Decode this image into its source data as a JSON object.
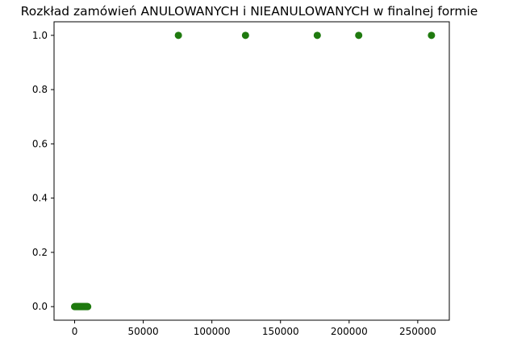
{
  "chart_data": {
    "type": "scatter",
    "title": "Rozkład zamówień ANULOWANYCH i NIEANULOWANYCH w finalnej formie",
    "xlabel": "",
    "ylabel": "",
    "xlim": [
      -15000,
      273000
    ],
    "ylim": [
      -0.05,
      1.05
    ],
    "x_ticks": [
      0,
      50000,
      100000,
      150000,
      200000,
      250000
    ],
    "x_tick_labels": [
      "0",
      "50000",
      "100000",
      "150000",
      "200000",
      "250000"
    ],
    "y_ticks": [
      0.0,
      0.2,
      0.4,
      0.6,
      0.8,
      1.0
    ],
    "y_tick_labels": [
      "0.0",
      "0.2",
      "0.4",
      "0.6",
      "0.8",
      "1.0"
    ],
    "grid": false,
    "marker_color": "#1f7a0f",
    "series": [
      {
        "points": [
          [
            0,
            0
          ],
          [
            500,
            0
          ],
          [
            1000,
            0
          ],
          [
            1500,
            0
          ],
          [
            2000,
            0
          ],
          [
            2500,
            0
          ],
          [
            3000,
            0
          ],
          [
            3500,
            0
          ],
          [
            4000,
            0
          ],
          [
            4500,
            0
          ],
          [
            5000,
            0
          ],
          [
            5500,
            0
          ],
          [
            6000,
            0
          ],
          [
            6500,
            0
          ],
          [
            7000,
            0
          ],
          [
            7500,
            0
          ],
          [
            8000,
            0
          ],
          [
            8500,
            0
          ],
          [
            9000,
            0
          ],
          [
            9500,
            0
          ],
          [
            75600,
            1
          ],
          [
            124500,
            1
          ],
          [
            176800,
            1
          ],
          [
            207000,
            1
          ],
          [
            260000,
            1
          ]
        ]
      }
    ]
  }
}
